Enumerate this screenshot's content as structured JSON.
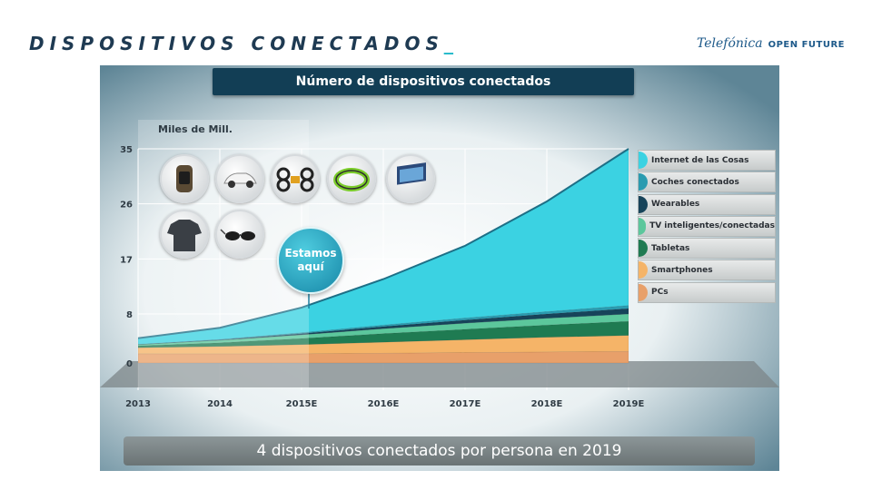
{
  "slide": {
    "title": "DISPOSITIVOS CONECTADOS",
    "title_cursor": "_",
    "brand_name": "Telefónica",
    "brand_sub": "OPEN FUTURE",
    "title_color": "#1e3a52",
    "accent_color": "#1fb8c9"
  },
  "chart_data": {
    "type": "area",
    "title": "Número de dispositivos conectados",
    "ylabel": "Miles de Mill.",
    "ylim": [
      0,
      35
    ],
    "yticks": [
      "0",
      "8",
      "17",
      "26",
      "35"
    ],
    "ytick_values": [
      0,
      8,
      17,
      26,
      35
    ],
    "categories": [
      "2013",
      "2014",
      "2015E",
      "2016E",
      "2017E",
      "2018E",
      "2019E"
    ],
    "stacked": true,
    "series": [
      {
        "name": "PCs",
        "color": "#e8a06a",
        "values": [
          1.5,
          1.5,
          1.5,
          1.6,
          1.7,
          1.8,
          1.9
        ]
      },
      {
        "name": "Smartphones",
        "color": "#f5b468",
        "values": [
          1.0,
          1.2,
          1.5,
          1.8,
          2.1,
          2.4,
          2.6
        ]
      },
      {
        "name": "Tabletas",
        "color": "#1f7b52",
        "values": [
          0.3,
          0.6,
          1.0,
          1.4,
          1.7,
          2.0,
          2.3
        ]
      },
      {
        "name": "TV inteligentes/conectadas",
        "color": "#5cc79c",
        "values": [
          0.2,
          0.4,
          0.6,
          0.8,
          1.0,
          1.1,
          1.2
        ]
      },
      {
        "name": "Wearables",
        "color": "#17445a",
        "values": [
          0.0,
          0.05,
          0.2,
          0.35,
          0.5,
          0.7,
          0.9
        ]
      },
      {
        "name": "Coches conectados",
        "color": "#2a9bb0",
        "values": [
          0.05,
          0.1,
          0.15,
          0.25,
          0.35,
          0.4,
          0.5
        ]
      },
      {
        "name": "Internet de las Cosas",
        "color": "#3bd2e2",
        "values": [
          1.0,
          1.9,
          4.1,
          7.5,
          11.8,
          18.0,
          25.6
        ]
      }
    ],
    "legend_order": [
      "Internet de las Cosas",
      "Coches conectados",
      "Wearables",
      "TV inteligentes/conectadas",
      "Tabletas",
      "Smartphones",
      "PCs"
    ],
    "legend_position": "right",
    "annotation": {
      "text_line1": "Estamos",
      "text_line2": "aquí",
      "at": "2015E"
    },
    "footer": "4 dispositivos conectados por persona en 2019",
    "grid": true
  },
  "devices": [
    "watch-icon",
    "car-icon",
    "drone-icon",
    "wristband-icon",
    "tv-icon",
    "shirt-icon",
    "glasses-icon"
  ]
}
